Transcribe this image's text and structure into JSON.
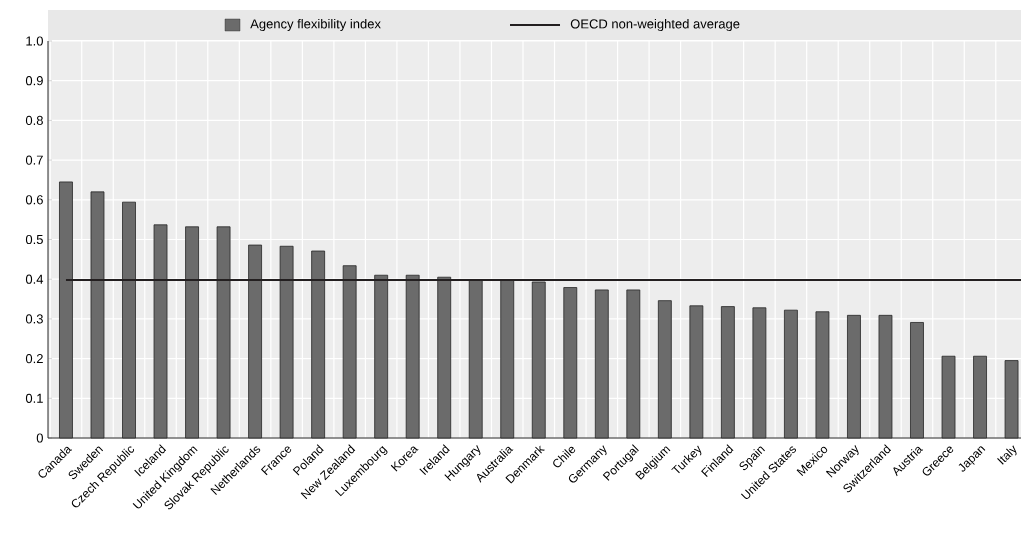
{
  "chart_data": {
    "type": "bar",
    "categories": [
      "Canada",
      "Sweden",
      "Czech Republic",
      "Iceland",
      "United Kingdom",
      "Slovak Republic",
      "Netherlands",
      "France",
      "Poland",
      "New Zealand",
      "Luxembourg",
      "Korea",
      "Ireland",
      "Hungary",
      "Australia",
      "Denmark",
      "Chile",
      "Germany",
      "Portugal",
      "Belgium",
      "Turkey",
      "Finland",
      "Spain",
      "United States",
      "Mexico",
      "Norway",
      "Switzerland",
      "Austria",
      "Greece",
      "Japan",
      "Italy"
    ],
    "series": [
      {
        "name": "Agency flexibility index",
        "color": "#6b6b6b",
        "values": [
          0.645,
          0.62,
          0.594,
          0.537,
          0.532,
          0.532,
          0.486,
          0.483,
          0.471,
          0.434,
          0.41,
          0.41,
          0.405,
          0.398,
          0.397,
          0.393,
          0.379,
          0.373,
          0.373,
          0.346,
          0.333,
          0.331,
          0.328,
          0.322,
          0.318,
          0.309,
          0.309,
          0.291,
          0.206,
          0.206,
          0.195
        ]
      }
    ],
    "ylim": [
      0,
      1
    ],
    "yticks": [
      0,
      0.1,
      0.2,
      0.3,
      0.4,
      0.5,
      0.6,
      0.7,
      0.8,
      0.9,
      {
        "value": 1,
        "label": "1.0"
      }
    ],
    "grid": true,
    "legend": "top",
    "ref_lines": [
      {
        "axis": "y",
        "value": 0.398,
        "label": "OECD non-weighted average",
        "color": "#231f20"
      }
    ]
  }
}
